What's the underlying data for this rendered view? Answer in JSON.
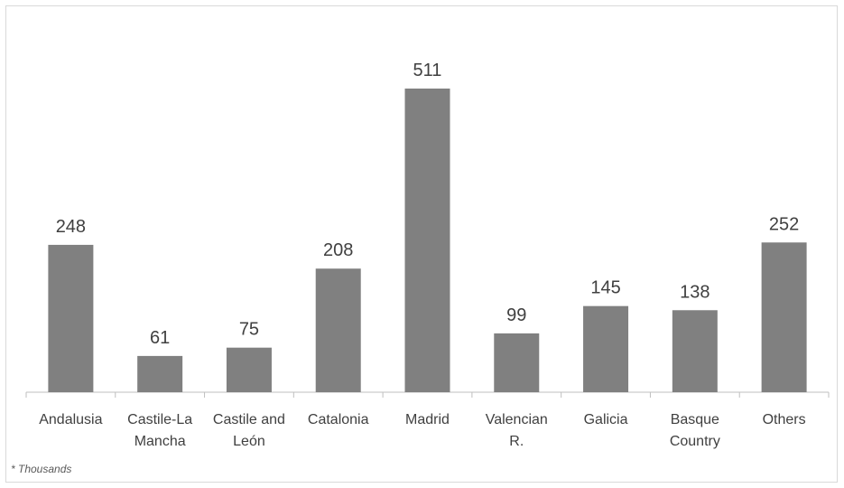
{
  "chart_data": {
    "type": "bar",
    "categories": [
      [
        "Andalusia"
      ],
      [
        "Castile-La",
        "Mancha"
      ],
      [
        "Castile and",
        "León"
      ],
      [
        "Catalonia"
      ],
      [
        "Madrid"
      ],
      [
        "Valencian",
        "R."
      ],
      [
        "Galicia"
      ],
      [
        "Basque",
        "Country"
      ],
      [
        "Others"
      ]
    ],
    "values": [
      248,
      61,
      75,
      208,
      511,
      99,
      145,
      138,
      252
    ],
    "title": "",
    "xlabel": "",
    "ylabel": "",
    "ylim": [
      0,
      560
    ],
    "grid": false,
    "legend": "none",
    "bar_color": "#808080",
    "axis_color": "#bfbfbf",
    "label_color": "#404040"
  },
  "footnote": "* Thousands"
}
